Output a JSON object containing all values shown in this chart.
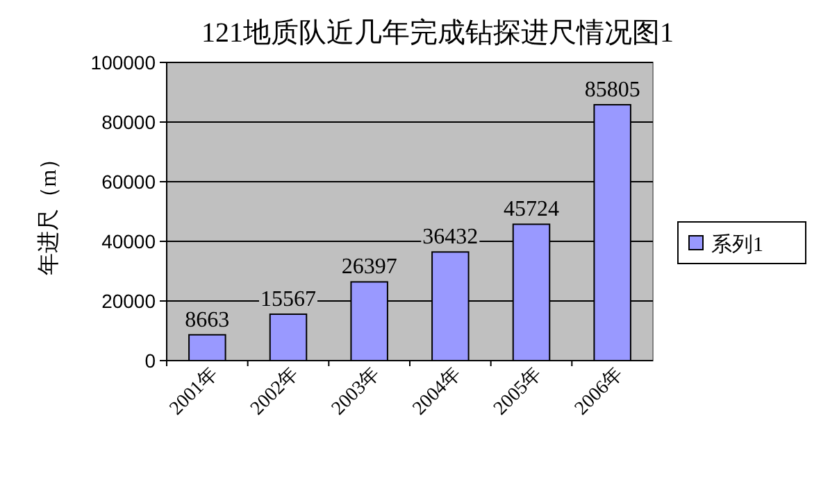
{
  "chart_data": {
    "type": "bar",
    "title": "121地质队近几年完成钻探进尺情况图1",
    "ylabel": "年进尺（m）",
    "categories": [
      "2001年",
      "2002年",
      "2003年",
      "2004年",
      "2005年",
      "2006年"
    ],
    "series": [
      {
        "name": "系列1",
        "color": "#9999ff",
        "values": [
          8663,
          15567,
          26397,
          36432,
          45724,
          85805
        ]
      }
    ],
    "ylim": [
      0,
      100000
    ],
    "yticks": [
      0,
      20000,
      40000,
      60000,
      80000,
      100000
    ],
    "grid": "y",
    "legend": "right",
    "data_labels": true
  }
}
